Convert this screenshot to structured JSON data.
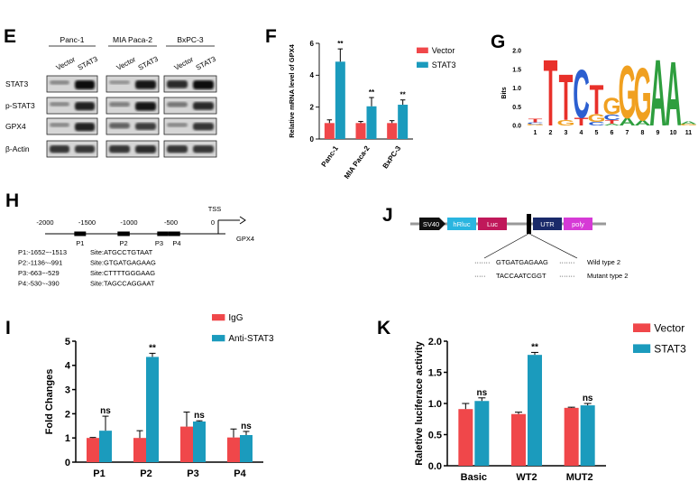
{
  "panels": {
    "E": {
      "label": "E",
      "cell_lines": [
        "Panc-1",
        "MIA Paca-2",
        "BxPC-3"
      ],
      "lanes": [
        "Vector",
        "STAT3"
      ],
      "rows": [
        "STAT3",
        "p-STAT3",
        "GPX4",
        "β-Actin"
      ]
    },
    "G": {
      "label": "G",
      "ylabel": "Bits",
      "yticks": [
        "2.0",
        "1.5",
        "1.0",
        "0.5",
        "0.0"
      ],
      "positions": [
        "1",
        "2",
        "3",
        "4",
        "5",
        "6",
        "7",
        "8",
        "9",
        "10",
        "11"
      ]
    },
    "H": {
      "label": "H",
      "tss": "TSS",
      "gene": "GPX4",
      "scale": [
        "-2000",
        "-1500",
        "-1000",
        "-500",
        "0"
      ],
      "sites": [
        {
          "name": "P1",
          "range": "P1:-1652~-1513",
          "site": "Site:ATGCCTGTAAT"
        },
        {
          "name": "P2",
          "range": "P2:-1136~-991",
          "site": "Site:GTGATGAGAAG"
        },
        {
          "name": "P3",
          "range": "P3:-663~-529",
          "site": "Site:CTTTTGGGAAG"
        },
        {
          "name": "P4",
          "range": "P4:-530~-390",
          "site": "Site:TAGCCAGGAAT"
        }
      ]
    },
    "J": {
      "label": "J",
      "elements": [
        "SV40",
        "hRluc",
        "Luc",
        "UTR",
        "poly"
      ],
      "wt_seq": "GTGATGAGAAG",
      "wt_label": "Wild type 2",
      "mut_seq": "TACCAATCGGT",
      "mut_label": "Mutant type 2"
    }
  },
  "chart_data": [
    {
      "id": "F",
      "label": "F",
      "type": "bar",
      "categories": [
        "Panc-1",
        "MIA Paca-2",
        "BxPC-3"
      ],
      "ylabel": "Relative mRNA level of GPX4",
      "ylim": [
        0,
        6
      ],
      "yticks": [
        0,
        2,
        4,
        6
      ],
      "legend_position": "top-right",
      "series": [
        {
          "name": "Vector",
          "color": "#f0474a",
          "values": [
            1.0,
            1.0,
            1.0
          ],
          "errors": [
            0.2,
            0.1,
            0.15
          ]
        },
        {
          "name": "STAT3",
          "color": "#1b9bbd",
          "values": [
            4.85,
            2.05,
            2.15
          ],
          "errors": [
            0.8,
            0.55,
            0.3
          ]
        }
      ],
      "significance": [
        [
          "",
          "**"
        ],
        [
          "",
          "**"
        ],
        [
          "",
          "**"
        ]
      ]
    },
    {
      "id": "I",
      "label": "I",
      "type": "bar",
      "categories": [
        "P1",
        "P2",
        "P3",
        "P4"
      ],
      "ylabel": "Fold Changes",
      "ylim": [
        0,
        5
      ],
      "yticks": [
        0,
        1,
        2,
        3,
        4,
        5
      ],
      "legend_position": "top",
      "series": [
        {
          "name": "IgG",
          "color": "#f0474a",
          "values": [
            1.0,
            1.0,
            1.47,
            1.02
          ],
          "errors": [
            0.02,
            0.3,
            0.6,
            0.35
          ]
        },
        {
          "name": "Anti-STAT3",
          "color": "#1b9bbd",
          "values": [
            1.3,
            4.35,
            1.68,
            1.12
          ],
          "errors": [
            0.6,
            0.15,
            0.03,
            0.15
          ]
        }
      ],
      "significance": [
        [
          "",
          "ns"
        ],
        [
          "",
          "**"
        ],
        [
          "",
          "ns"
        ],
        [
          "",
          "ns"
        ]
      ]
    },
    {
      "id": "K",
      "label": "K",
      "type": "bar",
      "categories": [
        "Basic",
        "WT2",
        "MUT2"
      ],
      "ylabel": "Raletive luciferace activity",
      "ylim": [
        0,
        2.0
      ],
      "yticks": [
        "0.0",
        "0.5",
        "1.0",
        "1.5",
        "2.0"
      ],
      "legend_position": "top-right",
      "series": [
        {
          "name": "Vector",
          "color": "#f0474a",
          "values": [
            0.91,
            0.83,
            0.93
          ],
          "errors": [
            0.09,
            0.03,
            0.01
          ]
        },
        {
          "name": "STAT3",
          "color": "#1b9bbd",
          "values": [
            1.04,
            1.78,
            0.97
          ],
          "errors": [
            0.05,
            0.04,
            0.03
          ]
        }
      ],
      "significance": [
        [
          "",
          "ns"
        ],
        [
          "",
          "**"
        ],
        [
          "",
          "ns"
        ]
      ]
    }
  ]
}
